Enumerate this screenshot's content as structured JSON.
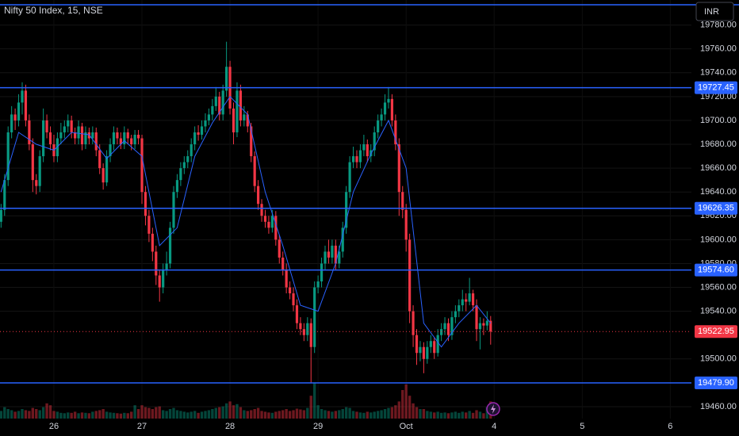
{
  "chart_data": {
    "type": "candlestick",
    "title": "Nifty 50 Index, 15, NSE",
    "currency": "INR",
    "colors": {
      "up": "#089981",
      "down": "#f23645",
      "level": "#2962ff",
      "ma": "#2962ff"
    },
    "xlim": [
      -0.3,
      196
    ],
    "xticks": [
      {
        "value": 15,
        "label": "26"
      },
      {
        "value": 40,
        "label": "27"
      },
      {
        "value": 65,
        "label": "28"
      },
      {
        "value": 90,
        "label": "29"
      },
      {
        "value": 115,
        "label": "Oct"
      },
      {
        "value": 140,
        "label": "4"
      },
      {
        "value": 165,
        "label": "5"
      },
      {
        "value": 190,
        "label": "6"
      }
    ],
    "ylim": [
      19450,
      19801
    ],
    "yticks": [
      {
        "value": 19460,
        "label": "19460.00"
      },
      {
        "value": 19500,
        "label": "19500.00"
      },
      {
        "value": 19540,
        "label": "19540.00"
      },
      {
        "value": 19560,
        "label": "19560.00"
      },
      {
        "value": 19580,
        "label": "19580.00"
      },
      {
        "value": 19600,
        "label": "19600.00"
      },
      {
        "value": 19620,
        "label": "19620.00"
      },
      {
        "value": 19640,
        "label": "19640.00"
      },
      {
        "value": 19660,
        "label": "19660.00"
      },
      {
        "value": 19680,
        "label": "19680.00"
      },
      {
        "value": 19700,
        "label": "19700.00"
      },
      {
        "value": 19720,
        "label": "19720.00"
      },
      {
        "value": 19740,
        "label": "19740.00"
      },
      {
        "value": 19760,
        "label": "19760.00"
      },
      {
        "value": 19780,
        "label": "19780.00"
      }
    ],
    "grid": true,
    "top_line": 19797,
    "levels": [
      19727.45,
      19626.35,
      {
        "value": 19574.6,
        "label": "19574.60"
      },
      {
        "value": 19479.9,
        "label": "19479.90"
      }
    ],
    "last_price": 19522.95,
    "ohlc": [
      [
        19615,
        19630,
        19610,
        19625
      ],
      [
        19625,
        19655,
        19620,
        19650
      ],
      [
        19650,
        19695,
        19645,
        19690
      ],
      [
        19690,
        19712,
        19685,
        19705
      ],
      [
        19705,
        19710,
        19692,
        19700
      ],
      [
        19700,
        19722,
        19695,
        19715
      ],
      [
        19715,
        19732,
        19705,
        19725
      ],
      [
        19725,
        19730,
        19695,
        19700
      ],
      [
        19700,
        19705,
        19675,
        19680
      ],
      [
        19680,
        19685,
        19640,
        19650
      ],
      [
        19650,
        19655,
        19638,
        19645
      ],
      [
        19645,
        19675,
        19640,
        19670
      ],
      [
        19670,
        19710,
        19665,
        19700
      ],
      [
        19700,
        19705,
        19685,
        19690
      ],
      [
        19690,
        19695,
        19675,
        19680
      ],
      [
        19680,
        19688,
        19665,
        19670
      ],
      [
        19670,
        19690,
        19665,
        19685
      ],
      [
        19685,
        19698,
        19680,
        19690
      ],
      [
        19690,
        19700,
        19685,
        19695
      ],
      [
        19695,
        19705,
        19690,
        19700
      ],
      [
        19700,
        19704,
        19685,
        19690
      ],
      [
        19690,
        19694,
        19680,
        19685
      ],
      [
        19685,
        19700,
        19680,
        19695
      ],
      [
        19695,
        19698,
        19675,
        19680
      ],
      [
        19680,
        19695,
        19676,
        19690
      ],
      [
        19690,
        19694,
        19680,
        19685
      ],
      [
        19685,
        19695,
        19680,
        19690
      ],
      [
        19690,
        19694,
        19670,
        19675
      ],
      [
        19675,
        19680,
        19655,
        19660
      ],
      [
        19660,
        19664,
        19642,
        19648
      ],
      [
        19648,
        19675,
        19645,
        19670
      ],
      [
        19670,
        19685,
        19665,
        19680
      ],
      [
        19680,
        19695,
        19675,
        19690
      ],
      [
        19690,
        19694,
        19680,
        19685
      ],
      [
        19685,
        19690,
        19676,
        19680
      ],
      [
        19680,
        19695,
        19676,
        19690
      ],
      [
        19690,
        19693,
        19680,
        19685
      ],
      [
        19685,
        19688,
        19675,
        19680
      ],
      [
        19680,
        19692,
        19676,
        19688
      ],
      [
        19688,
        19692,
        19680,
        19685
      ],
      [
        19685,
        19688,
        19630,
        19640
      ],
      [
        19640,
        19645,
        19612,
        19620
      ],
      [
        19620,
        19625,
        19598,
        19605
      ],
      [
        19605,
        19610,
        19582,
        19590
      ],
      [
        19590,
        19595,
        19562,
        19570
      ],
      [
        19570,
        19575,
        19548,
        19560
      ],
      [
        19560,
        19580,
        19555,
        19575
      ],
      [
        19575,
        19590,
        19570,
        19580
      ],
      [
        19580,
        19615,
        19576,
        19610
      ],
      [
        19610,
        19645,
        19605,
        19640
      ],
      [
        19640,
        19655,
        19635,
        19650
      ],
      [
        19650,
        19665,
        19645,
        19660
      ],
      [
        19660,
        19670,
        19655,
        19665
      ],
      [
        19665,
        19675,
        19660,
        19670
      ],
      [
        19670,
        19685,
        19665,
        19680
      ],
      [
        19680,
        19695,
        19675,
        19690
      ],
      [
        19690,
        19696,
        19683,
        19688
      ],
      [
        19688,
        19700,
        19684,
        19695
      ],
      [
        19695,
        19706,
        19690,
        19700
      ],
      [
        19700,
        19710,
        19696,
        19705
      ],
      [
        19705,
        19718,
        19700,
        19712
      ],
      [
        19712,
        19728,
        19708,
        19720
      ],
      [
        19720,
        19724,
        19700,
        19705
      ],
      [
        19705,
        19730,
        19700,
        19725
      ],
      [
        19725,
        19766,
        19720,
        19745
      ],
      [
        19745,
        19750,
        19705,
        19710
      ],
      [
        19710,
        19715,
        19680,
        19690
      ],
      [
        19690,
        19732,
        19686,
        19725
      ],
      [
        19725,
        19730,
        19695,
        19700
      ],
      [
        19700,
        19712,
        19695,
        19705
      ],
      [
        19705,
        19708,
        19690,
        19695
      ],
      [
        19695,
        19698,
        19665,
        19670
      ],
      [
        19670,
        19674,
        19640,
        19645
      ],
      [
        19645,
        19650,
        19625,
        19630
      ],
      [
        19630,
        19634,
        19615,
        19620
      ],
      [
        19620,
        19625,
        19610,
        19615
      ],
      [
        19615,
        19620,
        19605,
        19610
      ],
      [
        19610,
        19625,
        19606,
        19620
      ],
      [
        19620,
        19624,
        19595,
        19600
      ],
      [
        19600,
        19604,
        19580,
        19585
      ],
      [
        19585,
        19590,
        19570,
        19575
      ],
      [
        19575,
        19580,
        19555,
        19560
      ],
      [
        19560,
        19565,
        19550,
        19555
      ],
      [
        19555,
        19560,
        19540,
        19545
      ],
      [
        19545,
        19550,
        19525,
        19530
      ],
      [
        19530,
        19535,
        19520,
        19525
      ],
      [
        19525,
        19530,
        19515,
        19520
      ],
      [
        19520,
        19535,
        19515,
        19530
      ],
      [
        19530,
        19534,
        19480,
        19510
      ],
      [
        19510,
        19565,
        19505,
        19560
      ],
      [
        19560,
        19570,
        19555,
        19565
      ],
      [
        19565,
        19585,
        19560,
        19580
      ],
      [
        19580,
        19595,
        19575,
        19590
      ],
      [
        19590,
        19600,
        19580,
        19585
      ],
      [
        19585,
        19600,
        19580,
        19595
      ],
      [
        19595,
        19600,
        19575,
        19580
      ],
      [
        19580,
        19595,
        19576,
        19590
      ],
      [
        19590,
        19615,
        19585,
        19610
      ],
      [
        19610,
        19645,
        19605,
        19640
      ],
      [
        19640,
        19670,
        19635,
        19665
      ],
      [
        19665,
        19678,
        19660,
        19670
      ],
      [
        19670,
        19675,
        19660,
        19665
      ],
      [
        19665,
        19680,
        19660,
        19675
      ],
      [
        19675,
        19688,
        19670,
        19680
      ],
      [
        19680,
        19684,
        19665,
        19670
      ],
      [
        19670,
        19680,
        19665,
        19675
      ],
      [
        19675,
        19695,
        19670,
        19690
      ],
      [
        19690,
        19705,
        19685,
        19700
      ],
      [
        19700,
        19710,
        19695,
        19705
      ],
      [
        19705,
        19722,
        19700,
        19715
      ],
      [
        19715,
        19728,
        19710,
        19718
      ],
      [
        19718,
        19722,
        19695,
        19700
      ],
      [
        19700,
        19705,
        19675,
        19680
      ],
      [
        19680,
        19685,
        19620,
        19640
      ],
      [
        19640,
        19645,
        19618,
        19625
      ],
      [
        19625,
        19630,
        19590,
        19600
      ],
      [
        19600,
        19605,
        19530,
        19540
      ],
      [
        19540,
        19545,
        19510,
        19520
      ],
      [
        19520,
        19525,
        19495,
        19505
      ],
      [
        19505,
        19515,
        19498,
        19510
      ],
      [
        19510,
        19514,
        19488,
        19500
      ],
      [
        19500,
        19515,
        19496,
        19510
      ],
      [
        19510,
        19520,
        19505,
        19515
      ],
      [
        19515,
        19518,
        19500,
        19505
      ],
      [
        19505,
        19525,
        19502,
        19520
      ],
      [
        19520,
        19530,
        19515,
        19525
      ],
      [
        19525,
        19535,
        19520,
        19530
      ],
      [
        19530,
        19534,
        19515,
        19520
      ],
      [
        19520,
        19540,
        19516,
        19535
      ],
      [
        19535,
        19545,
        19530,
        19540
      ],
      [
        19540,
        19550,
        19535,
        19545
      ],
      [
        19545,
        19558,
        19540,
        19550
      ],
      [
        19550,
        19555,
        19540,
        19548
      ],
      [
        19548,
        19568,
        19545,
        19555
      ],
      [
        19555,
        19558,
        19540,
        19545
      ],
      [
        19545,
        19550,
        19515,
        19525
      ],
      [
        19525,
        19535,
        19508,
        19530
      ],
      [
        19530,
        19534,
        19520,
        19528
      ],
      [
        19528,
        19540,
        19524,
        19532
      ],
      [
        19532,
        19536,
        19512,
        19522.95
      ]
    ],
    "volume_ylim": [
      0,
      200
    ],
    "volume": [
      20,
      30,
      25,
      22,
      18,
      20,
      25,
      22,
      20,
      28,
      25,
      22,
      30,
      40,
      35,
      20,
      18,
      15,
      14,
      16,
      15,
      18,
      14,
      16,
      15,
      14,
      18,
      20,
      22,
      25,
      18,
      16,
      15,
      14,
      13,
      15,
      14,
      18,
      35,
      25,
      35,
      30,
      28,
      25,
      30,
      32,
      22,
      20,
      25,
      28,
      22,
      20,
      18,
      16,
      18,
      20,
      15,
      18,
      20,
      22,
      25,
      28,
      30,
      32,
      40,
      45,
      35,
      38,
      30,
      22,
      20,
      22,
      25,
      28,
      20,
      18,
      16,
      15,
      18,
      20,
      22,
      25,
      20,
      22,
      26,
      24,
      22,
      28,
      60,
      95,
      35,
      25,
      22,
      20,
      18,
      20,
      22,
      25,
      30,
      28,
      20,
      18,
      16,
      15,
      18,
      16,
      18,
      20,
      22,
      25,
      28,
      30,
      35,
      45,
      75,
      90,
      60,
      40,
      30,
      25,
      25,
      20,
      18,
      16,
      18,
      15,
      16,
      14,
      16,
      18,
      15,
      18,
      16,
      20,
      15,
      22,
      18,
      14,
      30,
      45
    ],
    "ma": {
      "x": [
        0,
        5,
        10,
        15,
        20,
        25,
        30,
        35,
        40,
        45,
        50,
        55,
        60,
        65,
        70,
        75,
        80,
        85,
        90,
        95,
        100,
        105,
        110,
        115,
        120,
        125,
        130,
        135,
        139
      ],
      "values": [
        19640,
        19690,
        19680,
        19675,
        19690,
        19688,
        19668,
        19683,
        19670,
        19595,
        19610,
        19670,
        19698,
        19720,
        19705,
        19640,
        19595,
        19545,
        19540,
        19580,
        19640,
        19672,
        19700,
        19660,
        19530,
        19510,
        19530,
        19545,
        19530
      ]
    }
  }
}
